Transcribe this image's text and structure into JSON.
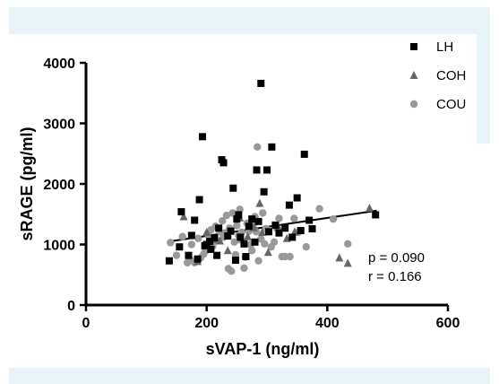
{
  "chart_data": {
    "type": "scatter",
    "xlabel": "sVAP-1 (ng/ml)",
    "ylabel": "sRAGE (pg/ml)",
    "xlim": [
      0,
      600
    ],
    "ylim": [
      0,
      4000
    ],
    "xticks": [
      0,
      200,
      400,
      600
    ],
    "yticks": [
      0,
      1000,
      2000,
      3000,
      4000
    ],
    "legend_position": "top-right",
    "series": [
      {
        "name": "LH",
        "marker": "square",
        "color": "#000000",
        "points": [
          [
            138,
            730
          ],
          [
            155,
            960
          ],
          [
            158,
            1540
          ],
          [
            170,
            820
          ],
          [
            175,
            1150
          ],
          [
            180,
            1400
          ],
          [
            185,
            760
          ],
          [
            188,
            1740
          ],
          [
            193,
            2780
          ],
          [
            197,
            980
          ],
          [
            205,
            1050
          ],
          [
            207,
            920
          ],
          [
            213,
            1110
          ],
          [
            220,
            1270
          ],
          [
            225,
            2400
          ],
          [
            228,
            2350
          ],
          [
            235,
            1140
          ],
          [
            240,
            1220
          ],
          [
            244,
            1930
          ],
          [
            250,
            1420
          ],
          [
            253,
            1490
          ],
          [
            256,
            1120
          ],
          [
            262,
            1010
          ],
          [
            265,
            800
          ],
          [
            270,
            1300
          ],
          [
            275,
            1420
          ],
          [
            280,
            1040
          ],
          [
            283,
            2230
          ],
          [
            286,
            1380
          ],
          [
            290,
            3660
          ],
          [
            295,
            1870
          ],
          [
            300,
            2230
          ],
          [
            303,
            1210
          ],
          [
            308,
            2610
          ],
          [
            314,
            1320
          ],
          [
            320,
            1190
          ],
          [
            330,
            1270
          ],
          [
            337,
            1650
          ],
          [
            342,
            1120
          ],
          [
            350,
            1770
          ],
          [
            356,
            1230
          ],
          [
            362,
            2490
          ],
          [
            370,
            1400
          ],
          [
            375,
            1260
          ],
          [
            480,
            1490
          ],
          [
            200,
            1000
          ],
          [
            217,
            820
          ],
          [
            248,
            740
          ]
        ]
      },
      {
        "name": "COH",
        "marker": "triangle",
        "color": "#666666",
        "points": [
          [
            162,
            1460
          ],
          [
            185,
            720
          ],
          [
            200,
            1200
          ],
          [
            212,
            1080
          ],
          [
            222,
            1060
          ],
          [
            235,
            900
          ],
          [
            255,
            1440
          ],
          [
            268,
            1130
          ],
          [
            278,
            1280
          ],
          [
            288,
            1680
          ],
          [
            292,
            1200
          ],
          [
            302,
            870
          ],
          [
            318,
            1310
          ],
          [
            333,
            1100
          ],
          [
            346,
            1210
          ],
          [
            420,
            780
          ],
          [
            434,
            690
          ],
          [
            470,
            1600
          ]
        ]
      },
      {
        "name": "COU",
        "marker": "circle",
        "color": "#999999",
        "points": [
          [
            140,
            1030
          ],
          [
            150,
            820
          ],
          [
            160,
            1130
          ],
          [
            168,
            700
          ],
          [
            172,
            760
          ],
          [
            175,
            1000
          ],
          [
            180,
            700
          ],
          [
            186,
            1100
          ],
          [
            190,
            780
          ],
          [
            195,
            840
          ],
          [
            198,
            890
          ],
          [
            203,
            1150
          ],
          [
            207,
            1240
          ],
          [
            210,
            970
          ],
          [
            215,
            1300
          ],
          [
            218,
            1060
          ],
          [
            222,
            1210
          ],
          [
            226,
            1390
          ],
          [
            228,
            1120
          ],
          [
            230,
            1190
          ],
          [
            233,
            1480
          ],
          [
            236,
            600
          ],
          [
            238,
            1270
          ],
          [
            241,
            560
          ],
          [
            243,
            1520
          ],
          [
            246,
            1040
          ],
          [
            248,
            830
          ],
          [
            250,
            1310
          ],
          [
            253,
            1150
          ],
          [
            255,
            1080
          ],
          [
            258,
            1200
          ],
          [
            262,
            610
          ],
          [
            264,
            790
          ],
          [
            267,
            1350
          ],
          [
            270,
            1220
          ],
          [
            273,
            1000
          ],
          [
            275,
            900
          ],
          [
            278,
            1330
          ],
          [
            280,
            1460
          ],
          [
            282,
            1210
          ],
          [
            284,
            2610
          ],
          [
            286,
            730
          ],
          [
            290,
            1090
          ],
          [
            293,
            1520
          ],
          [
            296,
            1010
          ],
          [
            298,
            1260
          ],
          [
            302,
            1240
          ],
          [
            307,
            960
          ],
          [
            312,
            1040
          ],
          [
            316,
            1270
          ],
          [
            320,
            1430
          ],
          [
            325,
            800
          ],
          [
            330,
            800
          ],
          [
            338,
            800
          ],
          [
            345,
            1430
          ],
          [
            352,
            1200
          ],
          [
            365,
            960
          ],
          [
            387,
            1590
          ],
          [
            410,
            1420
          ],
          [
            434,
            1010
          ],
          [
            255,
            1580
          ]
        ]
      }
    ],
    "regression_line": {
      "x": [
        138,
        482
      ],
      "y": [
        1050,
        1560
      ]
    },
    "annotations": [
      "p = 0.090",
      "r = 0.166"
    ]
  }
}
